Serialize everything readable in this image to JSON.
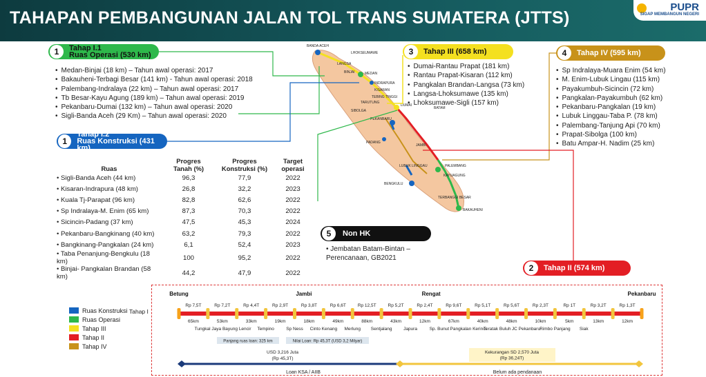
{
  "header": {
    "title": "TAHAPAN PEMBANGUNAN JALAN TOL TRANS SUMATERA (JTTS)",
    "logo": "PUPR",
    "logo_sub": "SIGAP MEMBANGUN NEGERI"
  },
  "colors": {
    "konstruksi": "#1565c0",
    "operasi": "#2eb84b",
    "tahap3": "#f4e020",
    "tahap2": "#e31e24",
    "tahap4": "#c8921a",
    "header": "#0d3b3f"
  },
  "tahap11": {
    "num": "1",
    "title": "Tahap I.1",
    "subtitle": "Ruas Operasi (530 km)",
    "items": [
      "Medan-Binjai (18 km) – Tahun awal operasi: 2017",
      "Bakauheni-Terbagi Besar (141 km) - Tahun awal operasi: 2018",
      "Palembang-Indralaya (22 km) – Tahun awal operasi: 2017",
      "Tb Besar-Kayu Agung (189 km) – Tahun awal operasi: 2019",
      "Pekanbaru-Dumai (132 km) – Tahun awal operasi: 2020",
      "Sigli-Banda Aceh (29 Km) – Tahun awal operasi: 2020"
    ]
  },
  "tahap12": {
    "num": "1",
    "title": "Tahap I.2",
    "subtitle": "Ruas Konstruksi (431 km)",
    "headers": [
      "Ruas",
      "Progres Tanah (%)",
      "Progres Konstruksi (%)",
      "Target operasi"
    ],
    "rows": [
      [
        "Sigli-Banda Aceh (44 km)",
        "96,3",
        "77,9",
        "2022"
      ],
      [
        "Kisaran-Indrapura (48 km)",
        "26,8",
        "32,2",
        "2023"
      ],
      [
        "Kuala Tj-Parapat (96 km)",
        "82,8",
        "62,6",
        "2022"
      ],
      [
        "Sp Indralaya-M. Enim (65 km)",
        "87,3",
        "70,3",
        "2022"
      ],
      [
        "Sicincin-Padang (37 km)",
        "47,5",
        "45,3",
        "2024"
      ],
      [
        "Pekanbaru-Bangkinang (40 km)",
        "63,2",
        "79,3",
        "2022"
      ],
      [
        "Bangkinang-Pangkalan (24 km)",
        "6,1",
        "52,4",
        "2023"
      ],
      [
        "Taba Penanjung-Bengkulu (18 km)",
        "100",
        "95,2",
        "2022"
      ],
      [
        "Binjai- Pangkalan Brandan (58 km)",
        "44,2",
        "47,9",
        "2022"
      ]
    ]
  },
  "tahap3": {
    "num": "3",
    "title": "Tahap III (658 km)",
    "items": [
      "Dumai-Rantau Prapat (181 km)",
      "Rantau Prapat-Kisaran (112 km)",
      "Pangkalan Brandan-Langsa (73 km)",
      "Langsa-Lhoksumawe (135 km)",
      "Lhoksumawe-Sigli (157 km)"
    ]
  },
  "tahap4": {
    "num": "4",
    "title": "Tahap IV (595 km)",
    "items": [
      "Sp Indralaya-Muara Enim (54 km)",
      "M. Enim-Lubuk Lingau (115 km)",
      "Payakumbuh-Sicincin (72 km)",
      "Pangkalan-Payakumbuh (62 km)",
      "Pekanbaru-Pangkalan (19 km)",
      "Lubuk Linggau-Taba P. (78 km)",
      "Palembang-Tanjung Api (70 km)",
      "Prapat-Sibolga (100 km)",
      "Batu Ampar-H. Nadim (25 km)"
    ]
  },
  "tahap2": {
    "num": "2",
    "title": "Tahap II (574 km)"
  },
  "nonhk": {
    "num": "5",
    "title": "Non HK",
    "items": [
      "Jembatan Batam-Bintan – Perencanaan, GB2021"
    ]
  },
  "map_labels": [
    "BANDA ACEH",
    "LHOKSEUMAWE",
    "LANGSA",
    "MEDAN",
    "BINJAI",
    "INDRAPURA",
    "KISARAN",
    "TEBING TINGGI",
    "TARUTUNG",
    "SIBOLGA",
    "DUMAI",
    "BATAM",
    "PEKANBARU",
    "PADANG",
    "JAMBI",
    "LUBUK LINGGAU",
    "PALEMBANG",
    "KAYUAGUNG",
    "BENGKULU",
    "TERBANGGI BESAR",
    "BAKAUHENI"
  ],
  "legend": {
    "items": [
      "Ruas Konstruksi",
      "Ruas Operasi",
      "Tahap III",
      "Tahap II",
      "Tahap IV"
    ],
    "tahap_label": "Tahap I"
  },
  "strip": {
    "cities": [
      {
        "name": "Betung",
        "pos": 0.0
      },
      {
        "name": "Jambi",
        "pos": 0.27
      },
      {
        "name": "Rengat",
        "pos": 0.545
      },
      {
        "name": "Pekanbaru",
        "pos": 1.0
      }
    ],
    "costs": [
      "Rp 7,5T",
      "Rp 7,2T",
      "Rp 4,4T",
      "Rp 2,9T",
      "Rp 3,8T",
      "Rp 6,6T",
      "Rp 12,5T",
      "Rp 5,2T",
      "Rp 2,4T",
      "Rp 9,6T",
      "Rp 5,1T",
      "Rp 5,6T",
      "Rp 2,3T",
      "Rp 1T",
      "Rp 3,2T",
      "Rp 1,3T"
    ],
    "kms": [
      "65km",
      "53km",
      "33km",
      "19km",
      "18km",
      "49km",
      "88km",
      "43km",
      "12km",
      "67km",
      "40km",
      "48km",
      "10km",
      "5km",
      "13km",
      "12km"
    ],
    "nodes": [
      "Tungkal Jaya",
      "Bayung Lencir",
      "Tempino",
      "Sp Ness",
      "Cinto Kenang",
      "Merlung",
      "Sentjalang",
      "Japura",
      "Sp. Bunut",
      "Pangkalan Kerinci",
      "Teratak Buluh",
      "JC Pekanbaru",
      "Rimbo Panjang",
      "Siak"
    ],
    "panjang": "Panjang ruas loan: 325 km",
    "nilai": "Nilai Loan: Rp 45,3T (USD 3,2 Milyar)",
    "usd": "USD 3,216 Juta",
    "usd_rp": "(Rp 45,3T)",
    "kekurangan": "Kekurangan SD 2,570 Juta",
    "kekurangan_rp": "(Rp 36,24T)",
    "loan_label": "Loan KSA / AIIB",
    "belum_label": "Belum ada pendanaan"
  }
}
